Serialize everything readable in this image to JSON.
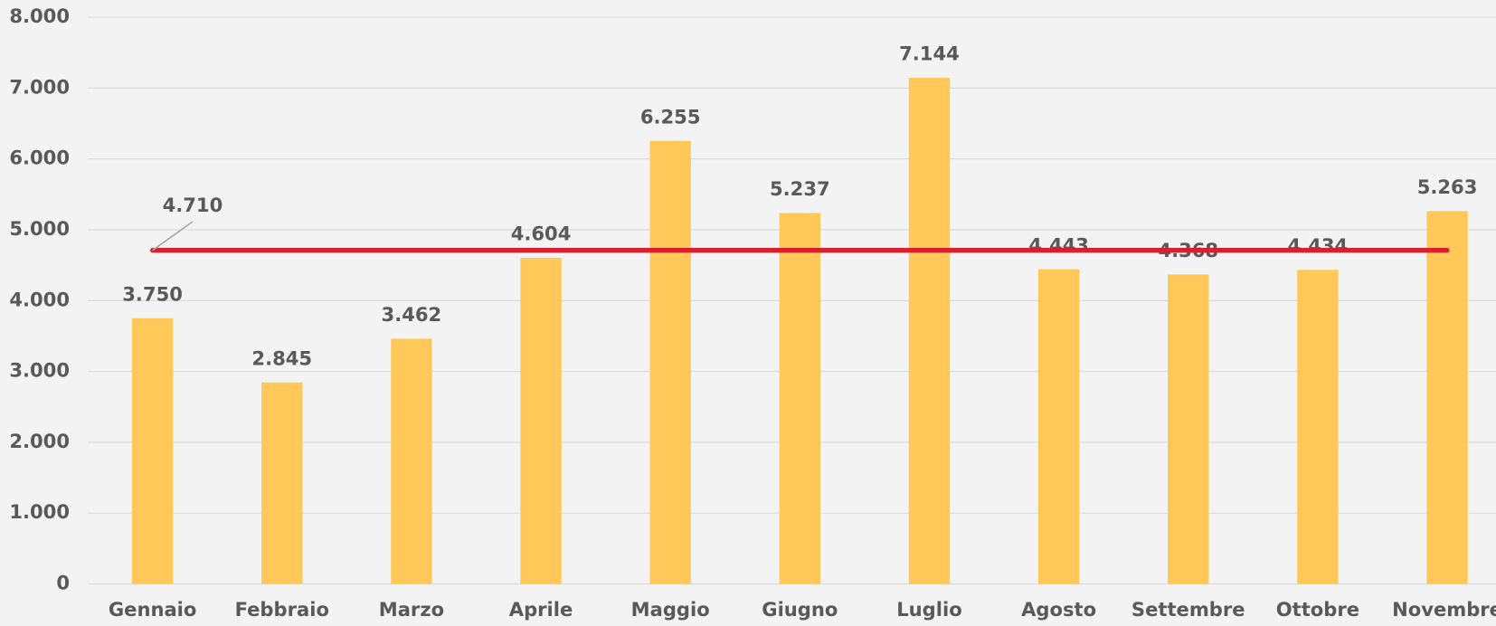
{
  "chart_data": {
    "type": "bar",
    "categories": [
      "Gennaio",
      "Febbraio",
      "Marzo",
      "Aprile",
      "Maggio",
      "Giugno",
      "Luglio",
      "Agosto",
      "Settembre",
      "Ottobre",
      "Novembre"
    ],
    "values": [
      3750,
      2845,
      3462,
      4604,
      6255,
      5237,
      7144,
      4443,
      4368,
      4434,
      5263
    ],
    "value_labels": [
      "3.750",
      "2.845",
      "3.462",
      "4.604",
      "6.255",
      "5.237",
      "7.144",
      "4.443",
      "4.368",
      "4.434",
      "5.263"
    ],
    "color": "#ffc858",
    "ylim": [
      0,
      8000
    ],
    "yticks": [
      0,
      {
        "value": 1000,
        "label": "1.000"
      },
      {
        "value": 2000,
        "label": "2.000"
      },
      {
        "value": 3000,
        "label": "3.000"
      },
      {
        "value": 4000,
        "label": "4.000"
      },
      {
        "value": 5000,
        "label": "5.000"
      },
      {
        "value": 6000,
        "label": "6.000"
      },
      {
        "value": 7000,
        "label": "7.000"
      },
      {
        "value": 8000,
        "label": "8.000"
      }
    ],
    "grid": true,
    "reference_line": {
      "value": 4710,
      "label": "4.710",
      "color": "#d9202f"
    }
  }
}
